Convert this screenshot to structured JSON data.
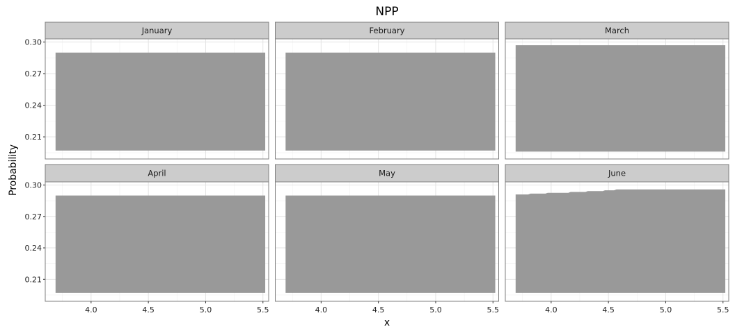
{
  "chart_data": {
    "type": "area",
    "title": "NPP",
    "xlabel": "x",
    "ylabel": "Probability",
    "xlim": [
      3.6,
      5.55
    ],
    "ylim": [
      0.189,
      0.303
    ],
    "x_ticks": [
      "4.0",
      "4.5",
      "5.0",
      "5.5"
    ],
    "y_ticks": [
      "0.21",
      "0.24",
      "0.27",
      "0.30"
    ],
    "grid": true,
    "fill_color": "#999999",
    "panels": [
      {
        "label": "January",
        "ymin": 0.197,
        "x": [
          3.69,
          5.52
        ],
        "y": [
          0.29,
          0.29
        ]
      },
      {
        "label": "February",
        "ymin": 0.197,
        "x": [
          3.69,
          5.52
        ],
        "y": [
          0.29,
          0.29
        ]
      },
      {
        "label": "March",
        "ymin": 0.196,
        "x": [
          3.69,
          5.52
        ],
        "y": [
          0.297,
          0.297
        ]
      },
      {
        "label": "April",
        "ymin": 0.197,
        "x": [
          3.69,
          5.52
        ],
        "y": [
          0.29,
          0.29
        ]
      },
      {
        "label": "May",
        "ymin": 0.197,
        "x": [
          3.69,
          5.52
        ],
        "y": [
          0.29,
          0.29
        ]
      },
      {
        "label": "June",
        "ymin": 0.197,
        "x": [
          3.69,
          3.8,
          3.82,
          3.95,
          3.97,
          4.15,
          4.17,
          4.3,
          4.32,
          4.45,
          4.47,
          4.55,
          4.57,
          5.52
        ],
        "y": [
          0.291,
          0.291,
          0.2918,
          0.2918,
          0.2926,
          0.2926,
          0.2934,
          0.2934,
          0.2942,
          0.2942,
          0.295,
          0.295,
          0.2958,
          0.2958
        ]
      }
    ]
  }
}
